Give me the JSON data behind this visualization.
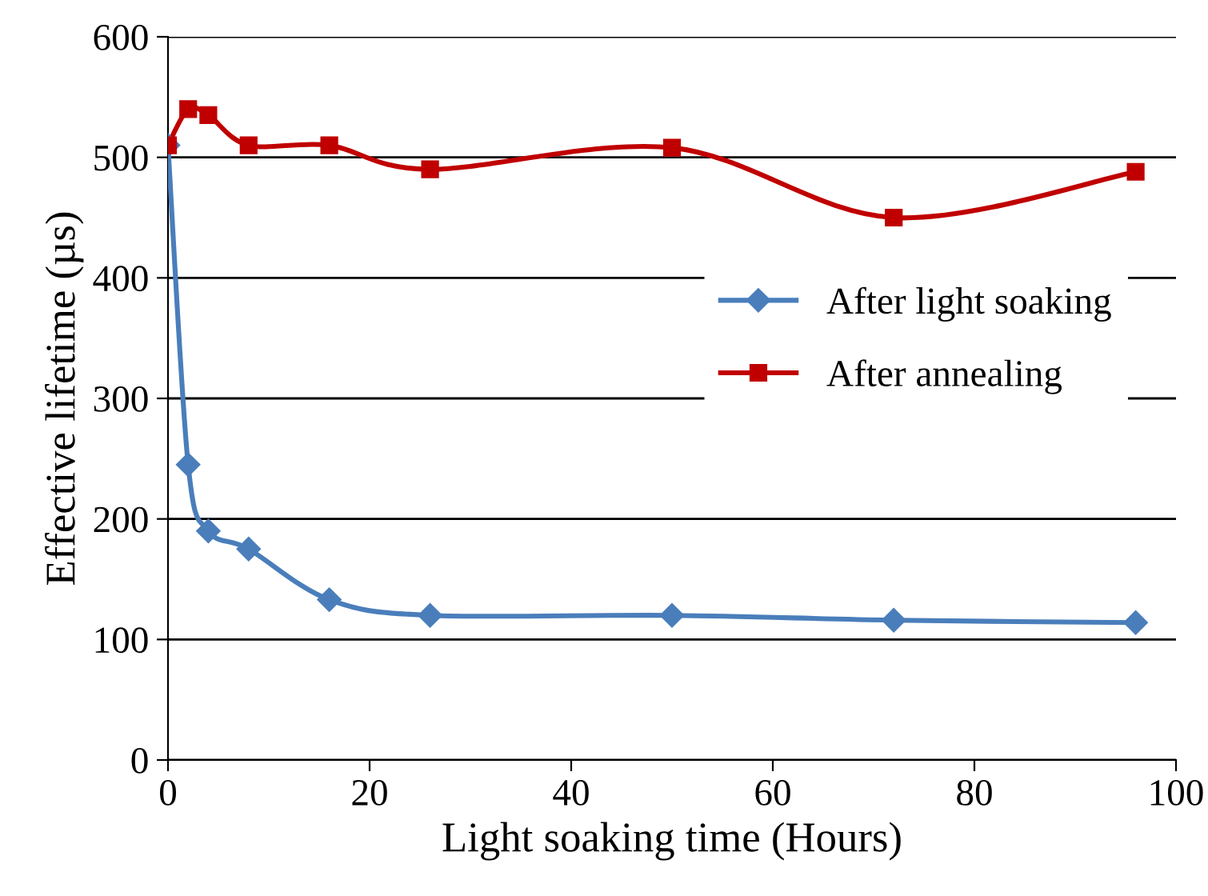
{
  "chart_data": {
    "type": "line",
    "xlabel": "Light soaking time (Hours)",
    "ylabel": "Effective lifetime (µs)",
    "xlim": [
      0,
      100
    ],
    "xticks": [
      0,
      20,
      40,
      60,
      80,
      100
    ],
    "ylim": [
      0,
      600
    ],
    "yticks": [
      0,
      100,
      200,
      300,
      400,
      500,
      600
    ],
    "grid": "y",
    "legend": "right",
    "series": [
      {
        "name": "After light soaking",
        "color": "#4a7ebb",
        "marker": "diamond",
        "x": [
          0,
          2,
          4,
          8,
          16,
          26,
          50,
          72,
          96
        ],
        "values": [
          510,
          245,
          190,
          175,
          133,
          120,
          120,
          116,
          114
        ]
      },
      {
        "name": "After annealing",
        "color": "#c00000",
        "marker": "square",
        "x": [
          0,
          2,
          4,
          8,
          16,
          26,
          50,
          72,
          96
        ],
        "values": [
          510,
          540,
          535,
          510,
          510,
          490,
          508,
          450,
          488
        ]
      }
    ]
  }
}
